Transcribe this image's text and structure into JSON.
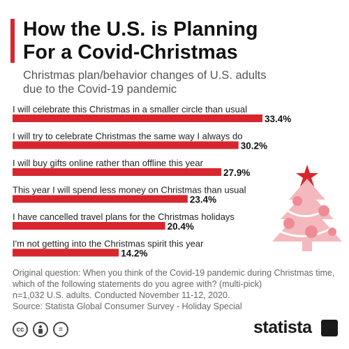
{
  "title_line1": "How the U.S. is Planning",
  "title_line2": "For a Covid-Christmas",
  "subtitle_line1": "Christmas plan/behavior changes of U.S. adults",
  "subtitle_line2": "due to the Covid-19 pandemic",
  "chart_data": {
    "type": "bar",
    "orientation": "horizontal",
    "categories": [
      "I will celebrate this Christmas in a smaller circle than usual",
      "I will try to celebrate Christmas the same way I always do",
      "I will buy gifts online rather than offline this year",
      "This year I will spend less money on Christmas than usual",
      "I have cancelled travel plans for the Christmas holidays",
      "I'm not getting into the Christmas spirit this year"
    ],
    "values": [
      33.4,
      30.2,
      27.9,
      23.4,
      20.4,
      14.2
    ],
    "value_labels": [
      "33.4%",
      "30.2%",
      "27.9%",
      "23.4%",
      "20.4%",
      "14.2%"
    ],
    "xlim": [
      0,
      33.4
    ],
    "bar_color": "#d7262d",
    "grid": false,
    "legend": "none"
  },
  "footnote": {
    "line1": "Original question: When you think of the Covid-19 pandemic during Christmas time,",
    "line2": "which of the following statements do you agree with? (multi-pick)",
    "line3": "n=1,032 U.S. adults. Conducted November 11-12, 2020.",
    "line4": "Source: Statista Global Consumer Survey - Holiday Special"
  },
  "footer": {
    "icons": [
      "creative-commons-icon",
      "attribution-icon",
      "no-derivatives-icon"
    ],
    "cc_text": "cc",
    "eq_text": "=",
    "brand": "statista"
  },
  "colors": {
    "accent": "#d7262d",
    "tree": "#f3b9be",
    "tree_ornament": "#d7262d"
  }
}
